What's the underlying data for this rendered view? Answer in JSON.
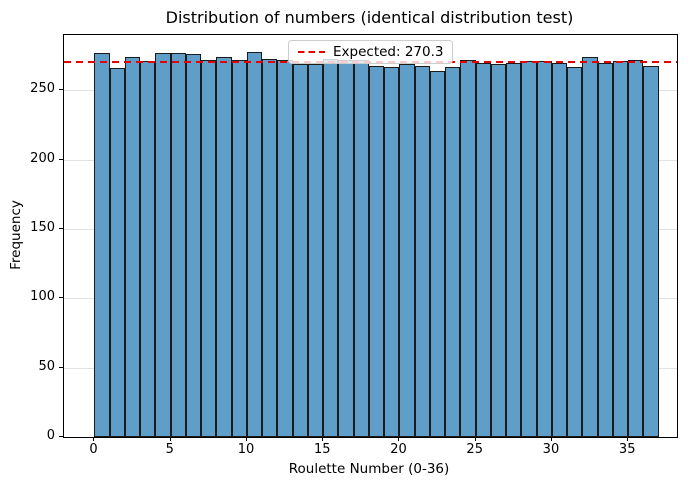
{
  "chart_data": {
    "type": "bar",
    "title": "Distribution of numbers (identical distribution test)",
    "xlabel": "Roulette Number (0-36)",
    "ylabel": "Frequency",
    "categories": [
      0,
      1,
      2,
      3,
      4,
      5,
      6,
      7,
      8,
      9,
      10,
      11,
      12,
      13,
      14,
      15,
      16,
      17,
      18,
      19,
      20,
      21,
      22,
      23,
      24,
      25,
      26,
      27,
      28,
      29,
      30,
      31,
      32,
      33,
      34,
      35,
      36
    ],
    "values": [
      277,
      266,
      274,
      271,
      277,
      277,
      276,
      272,
      274,
      272,
      278,
      273,
      272,
      269,
      269,
      273,
      272,
      272,
      268,
      267,
      269,
      268,
      264,
      267,
      272,
      270,
      269,
      270,
      271,
      271,
      270,
      267,
      274,
      270,
      271,
      272,
      268
    ],
    "xticks": [
      0,
      5,
      10,
      15,
      20,
      25,
      30,
      35
    ],
    "yticks": [
      0,
      50,
      100,
      150,
      200,
      250
    ],
    "xlim": [
      -2.0,
      38.2
    ],
    "ylim": [
      0,
      290
    ],
    "grid": "horizontal",
    "bar_color": "#5f9ec9",
    "bar_edge_color": "#1b1b1b",
    "expected_line": {
      "value": 270.3,
      "label": "Expected: 270.3",
      "color": "#eb0000",
      "style": "dashed"
    },
    "legend_position": "upper center"
  }
}
